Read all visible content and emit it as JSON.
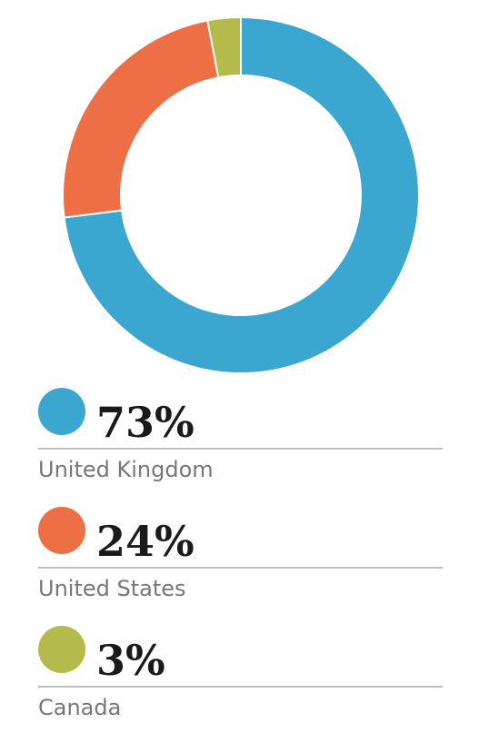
{
  "chart_data": {
    "type": "donut",
    "categories": [
      "United Kingdom",
      "United States",
      "Canada"
    ],
    "values": [
      73,
      24,
      3
    ],
    "value_labels": [
      "73%",
      "24%",
      "3%"
    ],
    "colors": [
      "#3ba7d0",
      "#ee6e45",
      "#b5bb4a"
    ]
  }
}
